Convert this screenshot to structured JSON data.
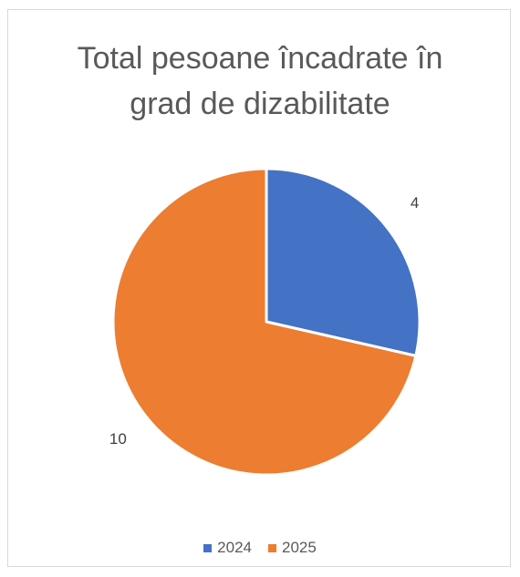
{
  "chart_data": {
    "type": "pie",
    "title_lines": [
      "Total pesoane încadrate în",
      "grad de dizabilitate"
    ],
    "categories": [
      "2024",
      "2025"
    ],
    "values": [
      4,
      10
    ],
    "colors": [
      "#4472c4",
      "#ed7d31"
    ],
    "data_labels": [
      "4",
      "10"
    ],
    "legend_position": "bottom",
    "start_angle_deg": 0,
    "direction": "clockwise"
  }
}
